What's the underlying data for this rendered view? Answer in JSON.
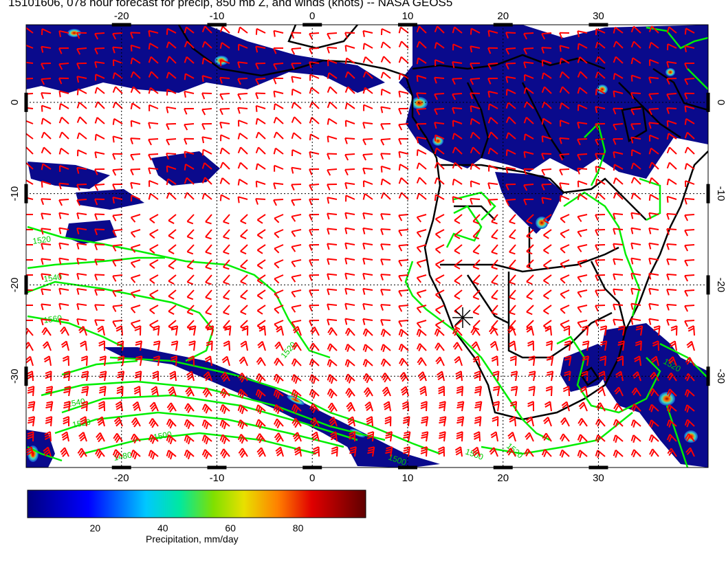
{
  "title": "15101606, 078 hour forecast for precip, 850 mb Z, and winds (knots) -- NASA GEOS5",
  "map": {
    "lon_ticks": [
      "-20",
      "-10",
      "0",
      "10",
      "20",
      "30"
    ],
    "lat_ticks": [
      "0",
      "-10",
      "-20",
      "-30"
    ],
    "lon_values": [
      -20,
      -10,
      0,
      10,
      20,
      30
    ],
    "lat_values": [
      0,
      -10,
      -20,
      -30
    ],
    "lon_range": [
      -30,
      41.5
    ],
    "lat_range": [
      -40,
      8.5
    ],
    "contour_labels": [
      "1520",
      "1540",
      "1560",
      "1520",
      "1540",
      "1520",
      "1500",
      "1480",
      "1500",
      "1520",
      "1520",
      "1500"
    ],
    "colors": {
      "wind_barbs": "#ff0000",
      "height_contours": "#00ee00",
      "coastlines": "#000000",
      "precip_low": "#0a0a8c"
    }
  },
  "colorbar": {
    "ticks": [
      "20",
      "40",
      "60",
      "80"
    ],
    "tick_values": [
      20,
      40,
      60,
      80
    ],
    "range": [
      0,
      100
    ],
    "label": "Precipitation, mm/day"
  }
}
